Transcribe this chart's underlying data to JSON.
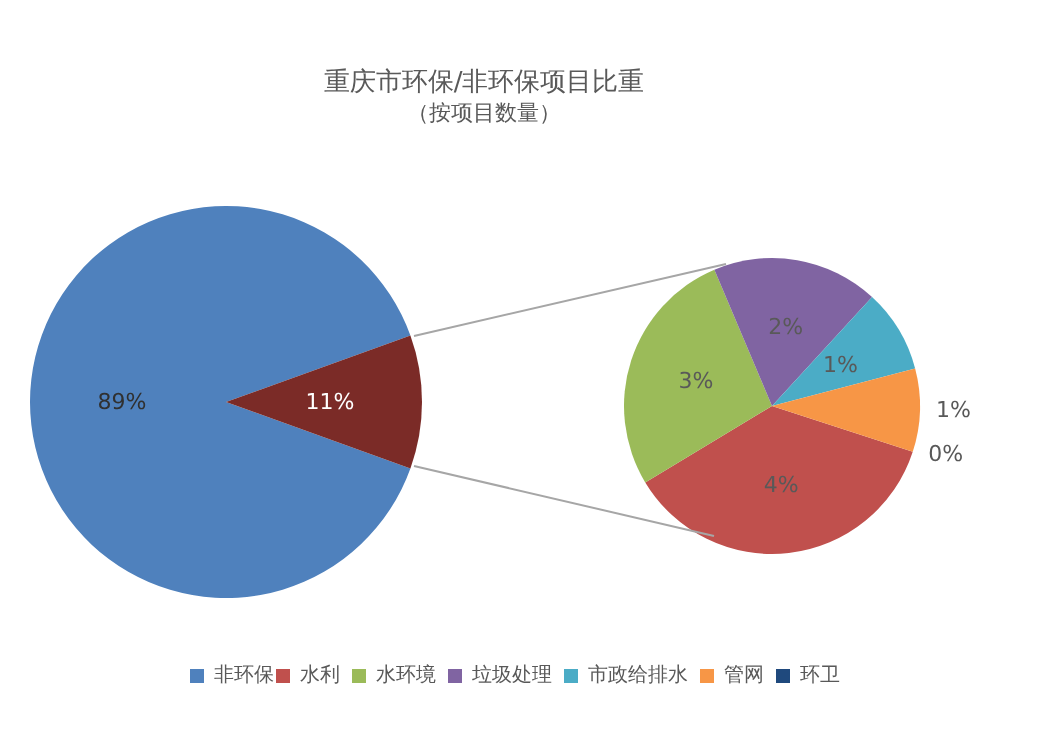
{
  "chart_data": [
    {
      "type": "pie",
      "title": "重庆市环保/非环保项目比重",
      "subtitle": "（按项目数量）",
      "categories": [
        "非环保",
        null
      ],
      "values": [
        89,
        11
      ],
      "colors": [
        "#4f81bd",
        "#7b2b27"
      ],
      "value_labels": [
        "89%",
        "11%"
      ],
      "legend": "bottom"
    },
    {
      "type": "pie",
      "categories": [
        "水利",
        "水环境",
        "垃圾处理",
        "市政给排水",
        "管网",
        "环卫"
      ],
      "values": [
        4,
        3,
        2,
        1,
        1,
        0
      ],
      "colors": [
        "#c0504d",
        "#9bbb59",
        "#8064a2",
        "#4bacc6",
        "#f79646",
        "#1f497d"
      ],
      "value_labels": [
        "4%",
        "3%",
        "2%",
        "1%",
        "1%",
        "0%"
      ],
      "legend": "bottom"
    }
  ]
}
